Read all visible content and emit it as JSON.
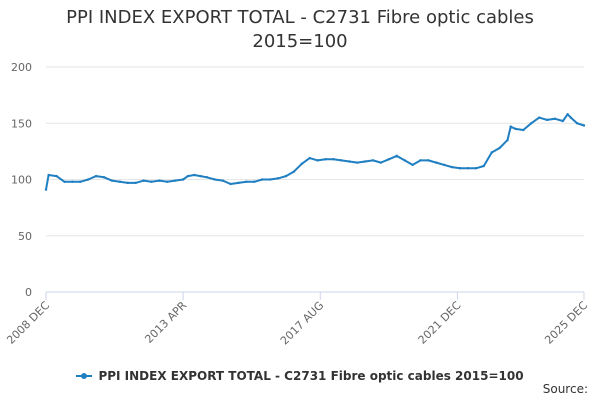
{
  "title_line1": "PPI INDEX EXPORT TOTAL - C2731 Fibre optic cables",
  "title_line2": "2015=100",
  "source_label": "Source:",
  "colors": {
    "series": "#1f7fc1",
    "grid": "#e6e6e6",
    "axis": "#ccd6eb"
  },
  "chart_data": {
    "type": "line",
    "title": "PPI INDEX EXPORT TOTAL - C2731 Fibre optic cables 2015=100",
    "ylim": [
      0,
      200
    ],
    "yticks": [
      0,
      50,
      100,
      150,
      200
    ],
    "xlim": [
      2008.917,
      2025.917
    ],
    "xticks": [
      {
        "label": "2008 DEC",
        "x": 2008.917
      },
      {
        "label": "2013 APR",
        "x": 2013.25
      },
      {
        "label": "2017 AUG",
        "x": 2017.583
      },
      {
        "label": "2021 DEC",
        "x": 2021.917
      },
      {
        "label": "2025 DEC",
        "x": 2025.917
      }
    ],
    "grid": true,
    "legend_position": "bottom",
    "series": [
      {
        "name": "PPI INDEX EXPORT TOTAL - C2731 Fibre optic cables 2015=100",
        "points": [
          [
            2008.917,
            91
          ],
          [
            2009.0,
            104
          ],
          [
            2009.25,
            103
          ],
          [
            2009.5,
            98
          ],
          [
            2009.75,
            98
          ],
          [
            2010.0,
            98
          ],
          [
            2010.25,
            100
          ],
          [
            2010.5,
            103
          ],
          [
            2010.75,
            102
          ],
          [
            2011.0,
            99
          ],
          [
            2011.25,
            98
          ],
          [
            2011.5,
            97
          ],
          [
            2011.75,
            97
          ],
          [
            2012.0,
            99
          ],
          [
            2012.25,
            98
          ],
          [
            2012.5,
            99
          ],
          [
            2012.75,
            98
          ],
          [
            2013.0,
            99
          ],
          [
            2013.25,
            100
          ],
          [
            2013.4,
            103
          ],
          [
            2013.6,
            104
          ],
          [
            2013.8,
            103
          ],
          [
            2014.0,
            102
          ],
          [
            2014.25,
            100
          ],
          [
            2014.5,
            99
          ],
          [
            2014.75,
            96
          ],
          [
            2015.0,
            97
          ],
          [
            2015.25,
            98
          ],
          [
            2015.5,
            98
          ],
          [
            2015.75,
            100
          ],
          [
            2016.0,
            100
          ],
          [
            2016.25,
            101
          ],
          [
            2016.5,
            103
          ],
          [
            2016.75,
            107
          ],
          [
            2017.0,
            114
          ],
          [
            2017.25,
            119
          ],
          [
            2017.5,
            117
          ],
          [
            2017.75,
            118
          ],
          [
            2018.0,
            118
          ],
          [
            2018.25,
            117
          ],
          [
            2018.5,
            116
          ],
          [
            2018.75,
            115
          ],
          [
            2019.0,
            116
          ],
          [
            2019.25,
            117
          ],
          [
            2019.5,
            115
          ],
          [
            2019.75,
            118
          ],
          [
            2020.0,
            121
          ],
          [
            2020.25,
            117
          ],
          [
            2020.5,
            113
          ],
          [
            2020.75,
            117
          ],
          [
            2021.0,
            117
          ],
          [
            2021.25,
            115
          ],
          [
            2021.5,
            113
          ],
          [
            2021.75,
            111
          ],
          [
            2022.0,
            110
          ],
          [
            2022.25,
            110
          ],
          [
            2022.5,
            110
          ],
          [
            2022.75,
            112
          ],
          [
            2023.0,
            124
          ],
          [
            2023.25,
            128
          ],
          [
            2023.5,
            135
          ],
          [
            2023.6,
            147
          ],
          [
            2023.75,
            145
          ],
          [
            2024.0,
            144
          ],
          [
            2024.25,
            150
          ],
          [
            2024.5,
            155
          ],
          [
            2024.75,
            153
          ],
          [
            2025.0,
            154
          ],
          [
            2025.25,
            152
          ],
          [
            2025.4,
            158
          ],
          [
            2025.5,
            155
          ],
          [
            2025.7,
            150
          ],
          [
            2025.917,
            148
          ]
        ]
      }
    ]
  }
}
